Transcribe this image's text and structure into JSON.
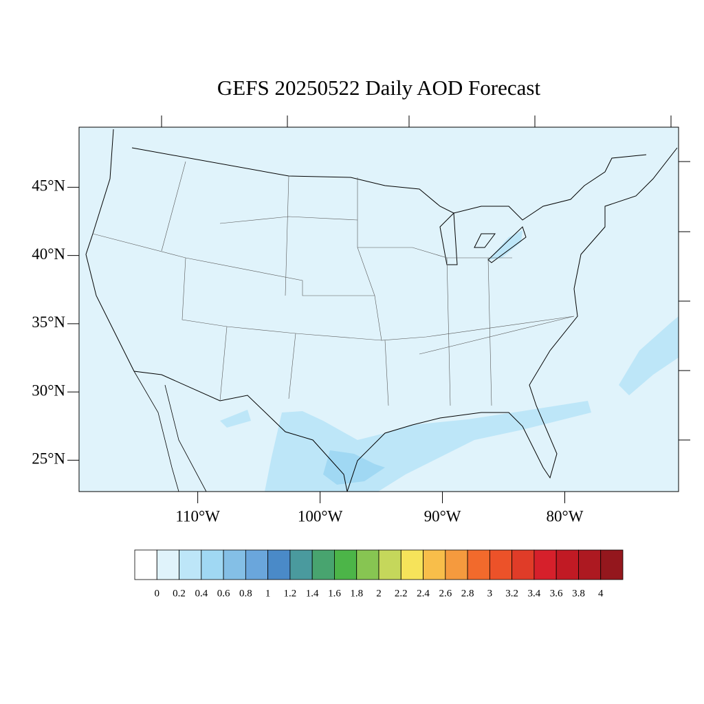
{
  "chart_data": {
    "type": "map",
    "title": "GEFS 20250522 Daily AOD Forecast",
    "xlim": [
      -119.7,
      -70.7
    ],
    "ylim": [
      22.7,
      49.4
    ],
    "xticks": [
      {
        "value": -110,
        "label": "110°W"
      },
      {
        "value": -100,
        "label": "100°W"
      },
      {
        "value": -90,
        "label": "90°W"
      },
      {
        "value": -80,
        "label": "80°W"
      }
    ],
    "yticks": [
      {
        "value": 25,
        "label": "25°N"
      },
      {
        "value": 30,
        "label": "30°N"
      },
      {
        "value": 35,
        "label": "35°N"
      },
      {
        "value": 40,
        "label": "40°N"
      },
      {
        "value": 45,
        "label": "45°N"
      }
    ],
    "colorbar": {
      "levels": [
        0,
        0.2,
        0.4,
        0.6,
        0.8,
        1,
        1.2,
        1.4,
        1.6,
        1.8,
        2,
        2.2,
        2.4,
        2.6,
        2.8,
        3,
        3.2,
        3.4,
        3.6,
        3.8,
        4
      ],
      "colors": [
        "#ffffff",
        "#e0f3fb",
        "#bde6f8",
        "#a0d8f3",
        "#84bfe6",
        "#6aa6dc",
        "#4a8ac8",
        "#4a9a9e",
        "#48a46f",
        "#4cb548",
        "#87c552",
        "#c5d75b",
        "#f6e35a",
        "#f8be4a",
        "#f59a3e",
        "#f26a2c",
        "#ec5229",
        "#e03c28",
        "#d6202b",
        "#c11a24",
        "#ad1921",
        "#94171d"
      ]
    }
  }
}
